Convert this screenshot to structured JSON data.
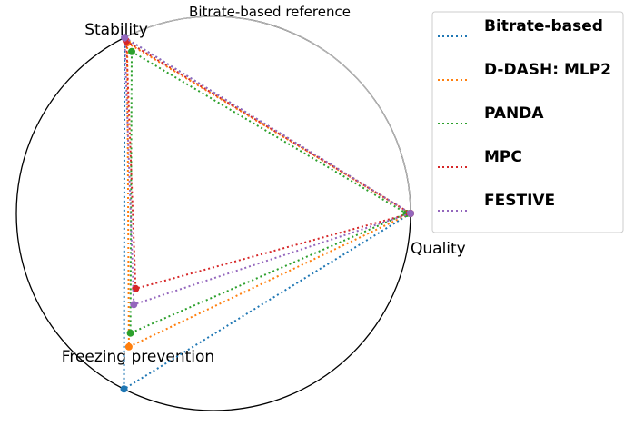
{
  "chart_data": {
    "type": "radar-triangle",
    "reference_label": "Bitrate-based reference",
    "axes": [
      {
        "key": "stability",
        "label": "Stability"
      },
      {
        "key": "quality",
        "label": "Quality"
      },
      {
        "key": "freezing",
        "label": "Freezing prevention"
      }
    ],
    "range": [
      0,
      1
    ],
    "legend_position": "upper-right",
    "series": [
      {
        "name": "Bitrate-based",
        "color": "#1f77b4",
        "values": {
          "stability": 1.0,
          "quality": 1.0,
          "freezing": 1.0
        }
      },
      {
        "name": "D-DASH: MLP2",
        "color": "#ff7f0e",
        "values": {
          "stability": 0.97,
          "quality": 1.0,
          "freezing": 0.6
        }
      },
      {
        "name": "PANDA",
        "color": "#2ca02c",
        "values": {
          "stability": 0.92,
          "quality": 0.98,
          "freezing": 0.47
        }
      },
      {
        "name": "MPC",
        "color": "#d62728",
        "values": {
          "stability": 0.98,
          "quality": 1.0,
          "freezing": 0.05
        }
      },
      {
        "name": "FESTIVE",
        "color": "#9467bd",
        "values": {
          "stability": 1.0,
          "quality": 1.0,
          "freezing": 0.2
        }
      }
    ]
  }
}
